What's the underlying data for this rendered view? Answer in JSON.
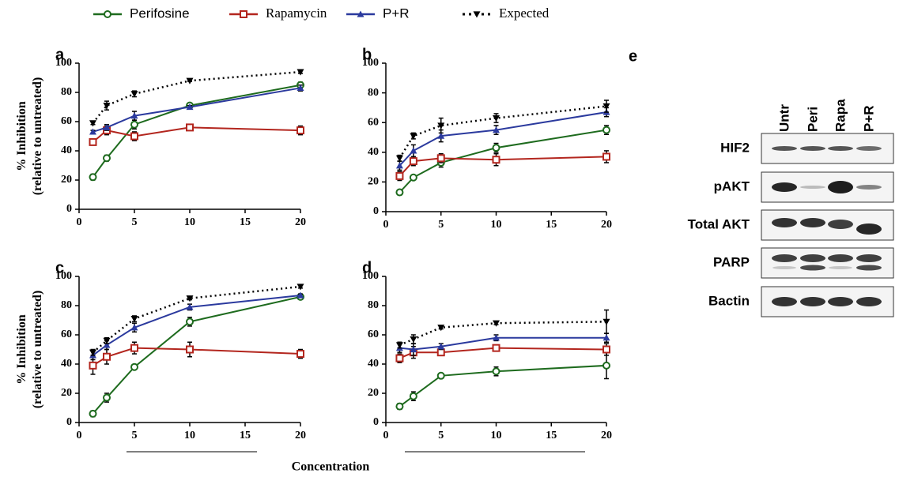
{
  "legend": [
    {
      "name": "Perifosine",
      "color": "#1e6b1e",
      "marker": "circle",
      "dash": "solid"
    },
    {
      "name": "Rapamycin",
      "color": "#b3261e",
      "marker": "square",
      "dash": "solid"
    },
    {
      "name": "P+R",
      "color": "#2b3a9e",
      "marker": "triangle-up",
      "dash": "solid"
    },
    {
      "name": "Expected",
      "color": "#000000",
      "marker": "triangle-down",
      "dash": "dotted"
    }
  ],
  "x_label": "Concentration",
  "chart_data": [
    {
      "type": "line",
      "panel": "a",
      "y_label": [
        "% Inhibition",
        "(relative to untreated)"
      ],
      "x": [
        1.25,
        2.5,
        5,
        10,
        20
      ],
      "xlim": [
        0,
        20
      ],
      "xticks": [
        0,
        5,
        10,
        15,
        20
      ],
      "ylim": [
        0,
        100
      ],
      "yticks": [
        0,
        20,
        40,
        60,
        80,
        100
      ],
      "series": [
        {
          "values": [
            22,
            35,
            58,
            71,
            85
          ],
          "errors": [
            2,
            2,
            3,
            1,
            2
          ]
        },
        {
          "values": [
            46,
            54,
            50,
            56,
            54
          ],
          "errors": [
            2,
            3,
            3,
            1,
            3
          ]
        },
        {
          "values": [
            53,
            56,
            64,
            70,
            83
          ],
          "errors": [
            1,
            2,
            3,
            1,
            2
          ]
        },
        {
          "values": [
            59,
            71,
            79,
            88,
            94
          ],
          "errors": [
            1,
            3,
            2,
            0.5,
            1
          ]
        }
      ]
    },
    {
      "type": "line",
      "panel": "b",
      "x": [
        1.25,
        2.5,
        5,
        10,
        20
      ],
      "xlim": [
        0,
        20
      ],
      "xticks": [
        0,
        5,
        10,
        15,
        20
      ],
      "ylim": [
        0,
        100
      ],
      "yticks": [
        0,
        20,
        40,
        60,
        80,
        100
      ],
      "series": [
        {
          "values": [
            13,
            23,
            33,
            43,
            55
          ],
          "errors": [
            1,
            1,
            3,
            3,
            3
          ]
        },
        {
          "values": [
            24,
            34,
            36,
            35,
            37
          ],
          "errors": [
            3,
            3,
            3,
            4,
            4
          ]
        },
        {
          "values": [
            31,
            41,
            51,
            55,
            67
          ],
          "errors": [
            3,
            4,
            4,
            3,
            3
          ]
        },
        {
          "values": [
            36,
            51,
            58,
            63,
            71
          ],
          "errors": [
            2,
            2,
            5,
            3,
            4
          ]
        }
      ]
    },
    {
      "type": "line",
      "panel": "c",
      "y_label": [
        "% Inhibition",
        "(relative to untreated)"
      ],
      "x": [
        1.25,
        2.5,
        5,
        10,
        20
      ],
      "xlim": [
        0,
        20
      ],
      "xticks": [
        0,
        5,
        10,
        15,
        20
      ],
      "ylim": [
        0,
        100
      ],
      "yticks": [
        0,
        20,
        40,
        60,
        80,
        100
      ],
      "series": [
        {
          "values": [
            6,
            17,
            38,
            69,
            86
          ],
          "errors": [
            2,
            3,
            1,
            3,
            1
          ]
        },
        {
          "values": [
            39,
            45,
            51,
            50,
            47
          ],
          "errors": [
            6,
            5,
            4,
            5,
            3
          ]
        },
        {
          "values": [
            46,
            53,
            65,
            79,
            87
          ],
          "errors": [
            3,
            3,
            3,
            2,
            1
          ]
        },
        {
          "values": [
            48,
            56,
            71,
            85,
            93
          ],
          "errors": [
            2,
            2,
            2,
            1,
            1
          ]
        }
      ]
    },
    {
      "type": "line",
      "panel": "d",
      "x": [
        1.25,
        2.5,
        5,
        10,
        20
      ],
      "xlim": [
        0,
        20
      ],
      "xticks": [
        0,
        5,
        10,
        15,
        20
      ],
      "ylim": [
        0,
        100
      ],
      "yticks": [
        0,
        20,
        40,
        60,
        80,
        100
      ],
      "series": [
        {
          "values": [
            11,
            18,
            32,
            35,
            39
          ],
          "errors": [
            2,
            3,
            1,
            3,
            9
          ]
        },
        {
          "values": [
            44,
            48,
            48,
            51,
            50
          ],
          "errors": [
            3,
            4,
            2,
            2,
            4
          ]
        },
        {
          "values": [
            51,
            50,
            52,
            58,
            58
          ],
          "errors": [
            3,
            4,
            2,
            2,
            3
          ]
        },
        {
          "values": [
            53,
            57,
            65,
            68,
            69
          ],
          "errors": [
            2,
            3,
            1,
            1,
            8
          ]
        }
      ]
    }
  ],
  "blot": {
    "panel": "e",
    "lanes": [
      "Untr",
      "Peri",
      "Rapa",
      "P+R"
    ],
    "rows": [
      "HIF2",
      "pAKT",
      "Total AKT",
      "PARP",
      "Bactin"
    ]
  }
}
